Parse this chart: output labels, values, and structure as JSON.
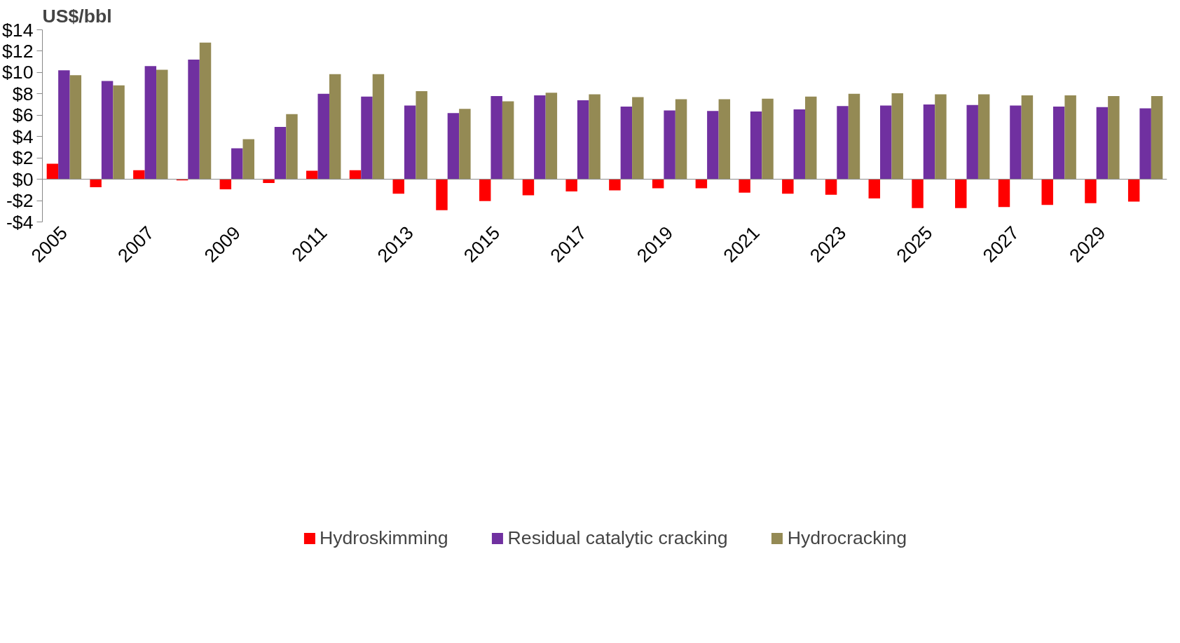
{
  "chart_data": {
    "type": "bar",
    "ylabel": "US$/bbl",
    "categories": [
      "2005",
      null,
      "2007",
      null,
      "2009",
      null,
      "2011",
      null,
      "2013",
      null,
      "2015",
      null,
      "2017",
      null,
      "2019",
      null,
      "2021",
      null,
      "2023",
      null,
      "2025",
      null,
      "2027",
      null,
      "2029",
      null
    ],
    "series": [
      {
        "name": "Hydroskimming",
        "color": "#ff0000",
        "values": [
          1.45,
          -0.75,
          0.85,
          -0.1,
          -0.95,
          -0.35,
          0.8,
          0.85,
          -1.35,
          -2.9,
          -2.05,
          -1.5,
          -1.15,
          -1.05,
          -0.85,
          -0.85,
          -1.25,
          -1.35,
          -1.45,
          -1.8,
          -2.7,
          -2.7,
          -2.6,
          -2.4,
          -2.25,
          -2.1
        ]
      },
      {
        "name": "Residual catalytic cracking",
        "color": "#7030a0",
        "values": [
          10.2,
          9.2,
          10.6,
          11.2,
          2.9,
          4.9,
          8.0,
          7.75,
          6.9,
          6.2,
          7.8,
          7.85,
          7.4,
          6.8,
          6.45,
          6.4,
          6.35,
          6.55,
          6.85,
          6.9,
          7.0,
          6.95,
          6.9,
          6.8,
          6.75,
          6.65
        ]
      },
      {
        "name": "Hydrocracking",
        "color": "#948a54",
        "values": [
          9.75,
          8.8,
          10.25,
          12.8,
          3.75,
          6.1,
          9.85,
          9.85,
          8.25,
          6.6,
          7.3,
          8.1,
          7.95,
          7.7,
          7.5,
          7.5,
          7.55,
          7.75,
          8.0,
          8.05,
          7.95,
          7.95,
          7.85,
          7.85,
          7.8,
          7.8
        ]
      }
    ],
    "ylim": [
      -4,
      14
    ],
    "yticks": [
      {
        "value": -4,
        "label": "-$4"
      },
      {
        "value": -2,
        "label": "-$2"
      },
      {
        "value": 0,
        "label": "$0"
      },
      {
        "value": 2,
        "label": "$2"
      },
      {
        "value": 4,
        "label": "$4"
      },
      {
        "value": 6,
        "label": "$6"
      },
      {
        "value": 8,
        "label": "$8"
      },
      {
        "value": 10,
        "label": "$10"
      },
      {
        "value": 12,
        "label": "$12"
      },
      {
        "value": 14,
        "label": "$14"
      }
    ],
    "grid": false,
    "legend": "bottom"
  }
}
